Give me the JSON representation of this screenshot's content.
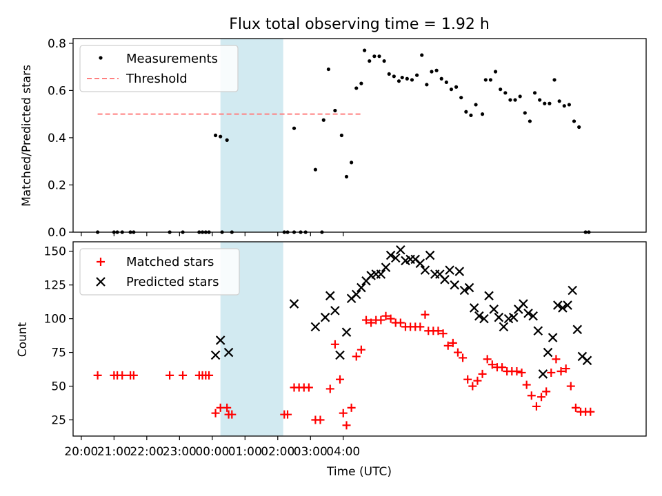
{
  "title": "Flux total observing time = 1.92 h",
  "xlabel": "Time (UTC)",
  "x_tick_labels": [
    "20:00",
    "21:00",
    "22:00",
    "23:00",
    "00:00",
    "01:00",
    "02:00",
    "03:00",
    "04:00"
  ],
  "colors": {
    "measurements": "#000000",
    "threshold": "#ff7f7f",
    "matched": "#ff0000",
    "predicted": "#000000",
    "highlight": "#add8e6"
  },
  "chart_data": [
    {
      "type": "scatter",
      "ylabel": "Matched/Predicted stars",
      "ylim": [
        0,
        0.82
      ],
      "yticks": [
        "0.0",
        "0.2",
        "0.4",
        "0.6",
        "0.8"
      ],
      "x_unit": "hours since 20:00 UTC",
      "xlim": [
        -0.25,
        17.25
      ],
      "highlight_span": [
        "00:15",
        "02:10"
      ],
      "legend": [
        "Measurements",
        "Threshold"
      ],
      "legend_position": "upper-left",
      "threshold": {
        "y": 0.5,
        "x_from": "20:30",
        "x_to": "04:35"
      },
      "series": [
        {
          "name": "Measurements",
          "points": [
            [
              0.5,
              0
            ],
            [
              1.0,
              0
            ],
            [
              1.1,
              0
            ],
            [
              1.25,
              0
            ],
            [
              1.5,
              0
            ],
            [
              1.6,
              0
            ],
            [
              2.7,
              0
            ],
            [
              3.1,
              0
            ],
            [
              3.6,
              0
            ],
            [
              3.7,
              0
            ],
            [
              3.8,
              0
            ],
            [
              3.9,
              0
            ],
            [
              4.1,
              0.41
            ],
            [
              4.25,
              0.405
            ],
            [
              4.45,
              0.39
            ],
            [
              4.3,
              0
            ],
            [
              4.6,
              0
            ],
            [
              6.2,
              0
            ],
            [
              6.3,
              0
            ],
            [
              6.5,
              0
            ],
            [
              6.7,
              0
            ],
            [
              6.85,
              0
            ],
            [
              7.35,
              0
            ],
            [
              6.5,
              0.44
            ],
            [
              7.15,
              0.265
            ],
            [
              7.4,
              0.475
            ],
            [
              7.55,
              0.69
            ],
            [
              7.75,
              0.515
            ],
            [
              7.95,
              0.41
            ],
            [
              8.1,
              0.235
            ],
            [
              8.25,
              0.295
            ],
            [
              8.4,
              0.61
            ],
            [
              8.55,
              0.63
            ],
            [
              8.65,
              0.77
            ],
            [
              8.8,
              0.725
            ],
            [
              8.95,
              0.745
            ],
            [
              9.1,
              0.745
            ],
            [
              9.25,
              0.725
            ],
            [
              9.4,
              0.67
            ],
            [
              9.55,
              0.66
            ],
            [
              9.7,
              0.64
            ],
            [
              9.8,
              0.655
            ],
            [
              9.95,
              0.65
            ],
            [
              10.1,
              0.645
            ],
            [
              10.25,
              0.665
            ],
            [
              10.4,
              0.75
            ],
            [
              10.55,
              0.625
            ],
            [
              10.7,
              0.68
            ],
            [
              10.85,
              0.685
            ],
            [
              11.0,
              0.65
            ],
            [
              11.15,
              0.635
            ],
            [
              11.3,
              0.605
            ],
            [
              11.45,
              0.615
            ],
            [
              11.6,
              0.57
            ],
            [
              11.75,
              0.51
            ],
            [
              11.9,
              0.495
            ],
            [
              12.05,
              0.54
            ],
            [
              12.25,
              0.5
            ],
            [
              12.35,
              0.645
            ],
            [
              12.5,
              0.645
            ],
            [
              12.65,
              0.68
            ],
            [
              12.8,
              0.605
            ],
            [
              12.95,
              0.59
            ],
            [
              13.1,
              0.56
            ],
            [
              13.25,
              0.56
            ],
            [
              13.4,
              0.575
            ],
            [
              13.55,
              0.505
            ],
            [
              13.7,
              0.47
            ],
            [
              13.85,
              0.59
            ],
            [
              14.0,
              0.56
            ],
            [
              14.15,
              0.545
            ],
            [
              14.3,
              0.545
            ],
            [
              14.45,
              0.645
            ],
            [
              14.6,
              0.555
            ],
            [
              14.75,
              0.535
            ],
            [
              14.9,
              0.54
            ],
            [
              15.05,
              0.47
            ],
            [
              15.2,
              0.445
            ],
            [
              15.4,
              0
            ],
            [
              15.5,
              0
            ]
          ]
        }
      ]
    },
    {
      "type": "scatter",
      "ylabel": "Count",
      "ylim": [
        13,
        157
      ],
      "yticks": [
        "25",
        "50",
        "75",
        "100",
        "125",
        "150"
      ],
      "x_unit": "hours since 20:00 UTC",
      "xlim": [
        -0.25,
        17.25
      ],
      "highlight_span": [
        "00:15",
        "02:10"
      ],
      "legend": [
        "Matched stars",
        "Predicted stars"
      ],
      "legend_position": "upper-left",
      "series": [
        {
          "name": "Matched stars",
          "points": [
            [
              0.5,
              58
            ],
            [
              1.0,
              58
            ],
            [
              1.1,
              58
            ],
            [
              1.25,
              58
            ],
            [
              1.5,
              58
            ],
            [
              1.6,
              58
            ],
            [
              2.7,
              58
            ],
            [
              3.1,
              58
            ],
            [
              3.6,
              58
            ],
            [
              3.7,
              58
            ],
            [
              3.8,
              58
            ],
            [
              3.9,
              58
            ],
            [
              4.1,
              30
            ],
            [
              4.25,
              34
            ],
            [
              4.45,
              34
            ],
            [
              4.5,
              29
            ],
            [
              4.6,
              29
            ],
            [
              6.2,
              29
            ],
            [
              6.3,
              29
            ],
            [
              6.5,
              49
            ],
            [
              6.65,
              49
            ],
            [
              6.8,
              49
            ],
            [
              6.95,
              49
            ],
            [
              7.15,
              25
            ],
            [
              7.3,
              25
            ],
            [
              7.6,
              48
            ],
            [
              7.75,
              81
            ],
            [
              7.9,
              55
            ],
            [
              8.0,
              30
            ],
            [
              8.1,
              21
            ],
            [
              8.25,
              34
            ],
            [
              8.4,
              72
            ],
            [
              8.55,
              77
            ],
            [
              8.7,
              99
            ],
            [
              8.85,
              97
            ],
            [
              9.0,
              99
            ],
            [
              9.15,
              99
            ],
            [
              9.3,
              102
            ],
            [
              9.45,
              100
            ],
            [
              9.6,
              97
            ],
            [
              9.75,
              97
            ],
            [
              9.9,
              94
            ],
            [
              10.05,
              94
            ],
            [
              10.2,
              94
            ],
            [
              10.35,
              94
            ],
            [
              10.5,
              103
            ],
            [
              10.6,
              91
            ],
            [
              10.75,
              91
            ],
            [
              10.9,
              91
            ],
            [
              11.05,
              89
            ],
            [
              11.2,
              80
            ],
            [
              11.35,
              82
            ],
            [
              11.5,
              75
            ],
            [
              11.65,
              71
            ],
            [
              11.8,
              55
            ],
            [
              11.95,
              50
            ],
            [
              12.1,
              54
            ],
            [
              12.25,
              59
            ],
            [
              12.4,
              70
            ],
            [
              12.55,
              66
            ],
            [
              12.7,
              64
            ],
            [
              12.85,
              64
            ],
            [
              13.0,
              61
            ],
            [
              13.15,
              61
            ],
            [
              13.3,
              61
            ],
            [
              13.45,
              60
            ],
            [
              13.6,
              51
            ],
            [
              13.75,
              43
            ],
            [
              13.9,
              35
            ],
            [
              14.05,
              42
            ],
            [
              14.2,
              46
            ],
            [
              14.35,
              60
            ],
            [
              14.5,
              70
            ],
            [
              14.65,
              61
            ],
            [
              14.8,
              63
            ],
            [
              14.95,
              50
            ],
            [
              15.1,
              34
            ],
            [
              15.25,
              31
            ],
            [
              15.4,
              31
            ],
            [
              15.55,
              31
            ]
          ]
        },
        {
          "name": "Predicted stars",
          "points": [
            [
              4.1,
              73
            ],
            [
              4.25,
              84
            ],
            [
              4.5,
              75
            ],
            [
              6.5,
              111
            ],
            [
              7.15,
              94
            ],
            [
              7.45,
              101
            ],
            [
              7.6,
              117
            ],
            [
              7.75,
              106
            ],
            [
              7.9,
              73
            ],
            [
              8.1,
              90
            ],
            [
              8.25,
              115
            ],
            [
              8.4,
              118
            ],
            [
              8.55,
              123
            ],
            [
              8.7,
              128
            ],
            [
              8.85,
              132
            ],
            [
              9.0,
              133
            ],
            [
              9.15,
              133
            ],
            [
              9.3,
              138
            ],
            [
              9.45,
              147
            ],
            [
              9.6,
              145
            ],
            [
              9.75,
              151
            ],
            [
              9.9,
              143
            ],
            [
              10.05,
              144
            ],
            [
              10.2,
              144
            ],
            [
              10.35,
              141
            ],
            [
              10.5,
              136
            ],
            [
              10.65,
              147
            ],
            [
              10.8,
              133
            ],
            [
              10.95,
              133
            ],
            [
              11.1,
              129
            ],
            [
              11.25,
              136
            ],
            [
              11.4,
              125
            ],
            [
              11.55,
              135
            ],
            [
              11.7,
              121
            ],
            [
              11.85,
              123
            ],
            [
              12.0,
              108
            ],
            [
              12.15,
              102
            ],
            [
              12.3,
              100
            ],
            [
              12.45,
              117
            ],
            [
              12.6,
              107
            ],
            [
              12.75,
              101
            ],
            [
              12.9,
              94
            ],
            [
              13.05,
              100
            ],
            [
              13.2,
              101
            ],
            [
              13.35,
              107
            ],
            [
              13.5,
              111
            ],
            [
              13.65,
              104
            ],
            [
              13.8,
              102
            ],
            [
              13.95,
              91
            ],
            [
              14.1,
              59
            ],
            [
              14.25,
              75
            ],
            [
              14.4,
              86
            ],
            [
              14.55,
              110
            ],
            [
              14.7,
              108
            ],
            [
              14.85,
              110
            ],
            [
              15.0,
              121
            ],
            [
              15.15,
              92
            ],
            [
              15.3,
              72
            ],
            [
              15.45,
              69
            ]
          ]
        }
      ]
    }
  ]
}
